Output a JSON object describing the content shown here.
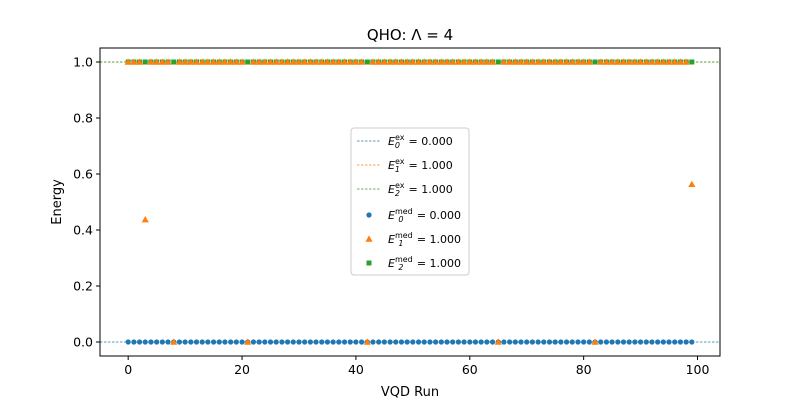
{
  "chart_data": {
    "type": "scatter",
    "title": "QHO: Λ = 4",
    "xlabel": "VQD Run",
    "ylabel": "Energy",
    "xlim": [
      -4.95,
      103.95
    ],
    "ylim": [
      -0.05,
      1.05
    ],
    "xticks": [
      0,
      20,
      40,
      60,
      80,
      100
    ],
    "xtick_labels": [
      "0",
      "20",
      "40",
      "60",
      "80",
      "100"
    ],
    "yticks": [
      0.0,
      0.2,
      0.4,
      0.6,
      0.8,
      1.0
    ],
    "ytick_labels": [
      "0.0",
      "0.2",
      "0.4",
      "0.6",
      "0.8",
      "1.0"
    ],
    "grid": false,
    "legend_position": "center",
    "exact_lines": [
      {
        "name": "E0_ex",
        "label_base": "E",
        "sub": "0",
        "sup": "ex",
        "value_text": " = 0.000",
        "y": 0.0,
        "color": "#1f77b4"
      },
      {
        "name": "E1_ex",
        "label_base": "E",
        "sub": "1",
        "sup": "ex",
        "value_text": " = 1.000",
        "y": 1.0,
        "color": "#ff7f0e"
      },
      {
        "name": "E2_ex",
        "label_base": "E",
        "sub": "2",
        "sup": "ex",
        "value_text": " = 1.000",
        "y": 1.0,
        "color": "#2ca02c"
      }
    ],
    "series": [
      {
        "name": "E0_med",
        "label_base": "E",
        "sub": "0",
        "sup": "med",
        "value_text": " = 0.000",
        "marker": "circle",
        "color": "#1f77b4",
        "x": [
          0,
          1,
          2,
          3,
          4,
          5,
          6,
          7,
          8,
          9,
          10,
          11,
          12,
          13,
          14,
          15,
          16,
          17,
          18,
          19,
          20,
          21,
          22,
          23,
          24,
          25,
          26,
          27,
          28,
          29,
          30,
          31,
          32,
          33,
          34,
          35,
          36,
          37,
          38,
          39,
          40,
          41,
          42,
          43,
          44,
          45,
          46,
          47,
          48,
          49,
          50,
          51,
          52,
          53,
          54,
          55,
          56,
          57,
          58,
          59,
          60,
          61,
          62,
          63,
          64,
          65,
          66,
          67,
          68,
          69,
          70,
          71,
          72,
          73,
          74,
          75,
          76,
          77,
          78,
          79,
          80,
          81,
          82,
          83,
          84,
          85,
          86,
          87,
          88,
          89,
          90,
          91,
          92,
          93,
          94,
          95,
          96,
          97,
          98,
          99
        ],
        "y_constant": 0.0
      },
      {
        "name": "E1_med",
        "label_base": "E",
        "sub": "1",
        "sup": "med",
        "value_text": " = 1.000",
        "marker": "triangle",
        "color": "#ff7f0e",
        "points": [
          [
            3,
            0.437
          ],
          [
            8,
            0.0
          ],
          [
            21,
            0.0
          ],
          [
            42,
            0.0
          ],
          [
            65,
            0.0
          ],
          [
            82,
            0.0
          ],
          [
            99,
            0.563
          ]
        ],
        "x_rest": [
          0,
          1,
          2,
          4,
          5,
          6,
          7,
          9,
          10,
          11,
          12,
          13,
          14,
          15,
          16,
          17,
          18,
          19,
          20,
          22,
          23,
          24,
          25,
          26,
          27,
          28,
          29,
          30,
          31,
          32,
          33,
          34,
          35,
          36,
          37,
          38,
          39,
          40,
          41,
          43,
          44,
          45,
          46,
          47,
          48,
          49,
          50,
          51,
          52,
          53,
          54,
          55,
          56,
          57,
          58,
          59,
          60,
          61,
          62,
          63,
          64,
          66,
          67,
          68,
          69,
          70,
          71,
          72,
          73,
          74,
          75,
          76,
          77,
          78,
          79,
          80,
          81,
          83,
          84,
          85,
          86,
          87,
          88,
          89,
          90,
          91,
          92,
          93,
          94,
          95,
          96,
          97,
          98
        ],
        "y_rest": 1.0
      },
      {
        "name": "E2_med",
        "label_base": "E",
        "sub": "2",
        "sup": "med",
        "value_text": " = 1.000",
        "marker": "square",
        "color": "#2ca02c",
        "x": [
          0,
          1,
          2,
          3,
          4,
          5,
          6,
          7,
          8,
          9,
          10,
          11,
          12,
          13,
          14,
          15,
          16,
          17,
          18,
          19,
          20,
          21,
          22,
          23,
          24,
          25,
          26,
          27,
          28,
          29,
          30,
          31,
          32,
          33,
          34,
          35,
          36,
          37,
          38,
          39,
          40,
          41,
          42,
          43,
          44,
          45,
          46,
          47,
          48,
          49,
          50,
          51,
          52,
          53,
          54,
          55,
          56,
          57,
          58,
          59,
          60,
          61,
          62,
          63,
          64,
          65,
          66,
          67,
          68,
          69,
          70,
          71,
          72,
          73,
          74,
          75,
          76,
          77,
          78,
          79,
          80,
          81,
          82,
          83,
          84,
          85,
          86,
          87,
          88,
          89,
          90,
          91,
          92,
          93,
          94,
          95,
          96,
          97,
          98,
          99
        ],
        "y_constant": 1.0
      }
    ]
  }
}
